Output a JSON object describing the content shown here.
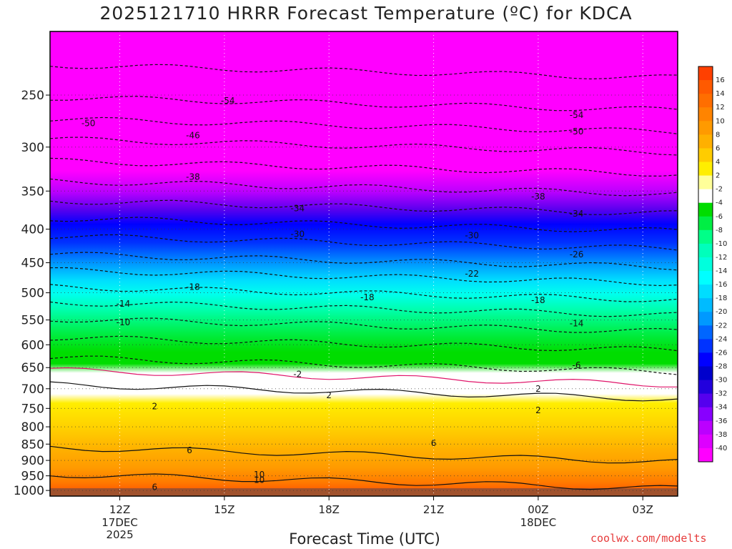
{
  "chart_data": {
    "type": "heatmap",
    "title": "2025121710 HRRR Forecast Temperature (ºC) for KDCA",
    "xlabel": "Forecast Time (UTC)",
    "ylabel": "",
    "credit": "coolwx.com/modelts",
    "x_ticks": [
      {
        "hour": 12,
        "label": "12Z",
        "sub": [
          "17DEC",
          "2025"
        ]
      },
      {
        "hour": 15,
        "label": "15Z",
        "sub": []
      },
      {
        "hour": 18,
        "label": "18Z",
        "sub": []
      },
      {
        "hour": 21,
        "label": "21Z",
        "sub": []
      },
      {
        "hour": 24,
        "label": "00Z",
        "sub": [
          "18DEC"
        ]
      },
      {
        "hour": 27,
        "label": "03Z",
        "sub": []
      }
    ],
    "xlim_hours": [
      10,
      28
    ],
    "y_levels_hpa": [
      250,
      300,
      350,
      400,
      450,
      500,
      550,
      600,
      650,
      700,
      750,
      800,
      850,
      900,
      950,
      1000
    ],
    "ylim_hpa": [
      200,
      1020
    ],
    "colorbar_labels": [
      "16",
      "14",
      "12",
      "10",
      "8",
      "6",
      "4",
      "2",
      "-2",
      "-4",
      "-6",
      "-8",
      "-10",
      "-12",
      "-14",
      "-16",
      "-18",
      "-20",
      "-22",
      "-24",
      "-26",
      "-28",
      "-30",
      "-32",
      "-34",
      "-36",
      "-38",
      "-40"
    ],
    "colorbar_colors": [
      "#ff4000",
      "#ff5a00",
      "#ff6e00",
      "#ff8400",
      "#ff9a00",
      "#ffb000",
      "#ffcc00",
      "#ffee00",
      "#ffff99",
      "#ffffff",
      "#00dd00",
      "#00ee44",
      "#00ff88",
      "#00ffbb",
      "#00ffdd",
      "#00ffff",
      "#00ddff",
      "#00bbff",
      "#0099ff",
      "#0066ff",
      "#0033ff",
      "#0000ff",
      "#0000cc",
      "#2200dd",
      "#5500ee",
      "#8800ff",
      "#bb00ff",
      "#dd00ff",
      "#ff00ff"
    ],
    "contour_labels": [
      {
        "text": "-54",
        "hour": 15.1,
        "hpa": 255
      },
      {
        "text": "-54",
        "hour": 25.1,
        "hpa": 268
      },
      {
        "text": "-50",
        "hour": 11.1,
        "hpa": 276
      },
      {
        "text": "-50",
        "hour": 25.1,
        "hpa": 284
      },
      {
        "text": "-46",
        "hour": 14.1,
        "hpa": 288
      },
      {
        "text": "-38",
        "hour": 14.1,
        "hpa": 333
      },
      {
        "text": "-38",
        "hour": 24.0,
        "hpa": 357
      },
      {
        "text": "-34",
        "hour": 17.1,
        "hpa": 372
      },
      {
        "text": "-34",
        "hour": 25.1,
        "hpa": 379
      },
      {
        "text": "-30",
        "hour": 17.1,
        "hpa": 407
      },
      {
        "text": "-30",
        "hour": 22.1,
        "hpa": 409
      },
      {
        "text": "-26",
        "hour": 25.1,
        "hpa": 437
      },
      {
        "text": "-22",
        "hour": 22.1,
        "hpa": 468
      },
      {
        "text": "-18",
        "hour": 14.1,
        "hpa": 490
      },
      {
        "text": "-18",
        "hour": 19.1,
        "hpa": 508
      },
      {
        "text": "-18",
        "hour": 24.0,
        "hpa": 513
      },
      {
        "text": "-14",
        "hour": 12.1,
        "hpa": 520
      },
      {
        "text": "-14",
        "hour": 25.1,
        "hpa": 557
      },
      {
        "text": "-10",
        "hour": 12.1,
        "hpa": 555
      },
      {
        "text": "-6",
        "hour": 25.1,
        "hpa": 645
      },
      {
        "text": "-2",
        "hour": 17.1,
        "hpa": 665
      },
      {
        "text": "2",
        "hour": 24.0,
        "hpa": 700
      },
      {
        "text": "2",
        "hour": 18.0,
        "hpa": 716
      },
      {
        "text": "2",
        "hour": 13.0,
        "hpa": 745
      },
      {
        "text": "2",
        "hour": 24.0,
        "hpa": 755
      },
      {
        "text": "6",
        "hour": 21.0,
        "hpa": 847
      },
      {
        "text": "6",
        "hour": 14.0,
        "hpa": 869
      },
      {
        "text": "10",
        "hour": 16.0,
        "hpa": 946
      },
      {
        "text": "10",
        "hour": 16.0,
        "hpa": 964
      },
      {
        "text": "6",
        "hour": 13.0,
        "hpa": 989
      }
    ],
    "colors": {
      "background": "#ffffff",
      "frame": "#000000",
      "credit": "#e63b3b",
      "zero_contour": "#e0156a",
      "ground": "#a0522d"
    }
  }
}
